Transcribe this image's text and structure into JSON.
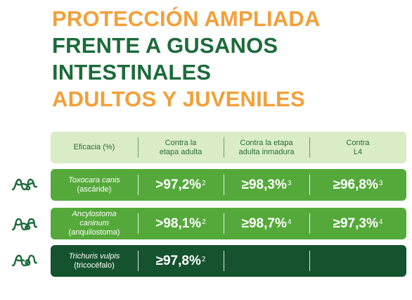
{
  "title": {
    "line1": "PROTECCIÓN AMPLIADA",
    "line2": "FRENTE A GUSANOS",
    "line3": "INTESTINALES",
    "line4": "ADULTOS Y JUVENILES"
  },
  "colors": {
    "orange": "#f2a03a",
    "dark_green": "#1c6b3a",
    "light_green": "#55a93b",
    "pale_green": "#d9ecc5",
    "deep_green": "#15532e"
  },
  "table": {
    "headers": {
      "efficacy": "Eficacia (%)",
      "adult_1": "Contra la",
      "adult_2": "etapa adulta",
      "immature_1": "Contra la etapa",
      "immature_2": "adulta inmadura",
      "l4_1": "Contra",
      "l4_2": "L4"
    },
    "rows": [
      {
        "icon": "roundworm-icon",
        "sci": "Toxocara canis",
        "common": "(ascáride)",
        "adult": ">97,2%",
        "adult_ref": "2",
        "immature": "≥98,3%",
        "immature_ref": "3",
        "l4": "≥96,8%",
        "l4_ref": "3"
      },
      {
        "icon": "hookworm-icon",
        "sci_1": "Ancylostoma",
        "sci_2": "caninum",
        "common": "(anquilostoma)",
        "adult": ">98,1%",
        "adult_ref": "2",
        "immature": "≥98,7%",
        "immature_ref": "4",
        "l4": "≥97,3%",
        "l4_ref": "4"
      },
      {
        "icon": "whipworm-icon",
        "sci": "Trichuris vulpis",
        "common": "(tricocéfalo)",
        "adult": "≥97,8%",
        "adult_ref": "2",
        "immature": "",
        "l4": ""
      }
    ]
  }
}
